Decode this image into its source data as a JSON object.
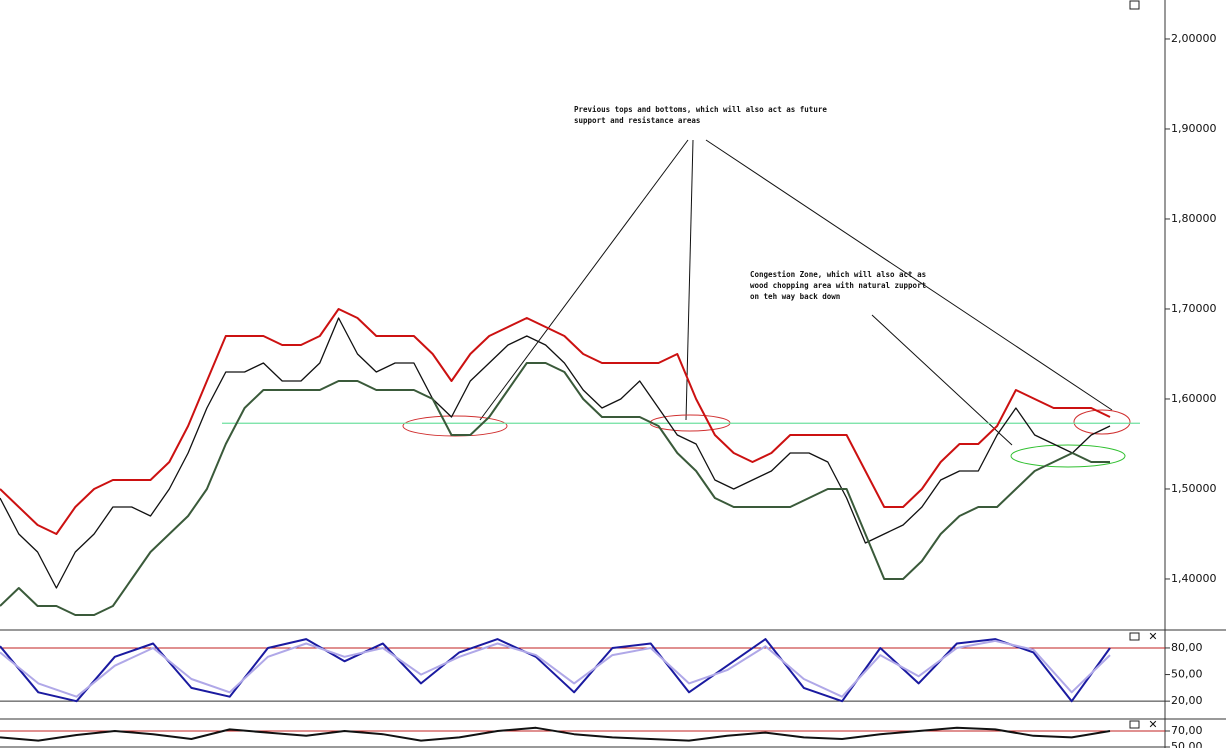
{
  "chart_data": [
    {
      "type": "line",
      "ylim": [
        1.3433,
        2.0433
      ],
      "yticks": [
        {
          "value": 1.4,
          "label": "1,40000"
        },
        {
          "value": 1.5,
          "label": "1,50000"
        },
        {
          "value": 1.6,
          "label": "1,60000"
        },
        {
          "value": 1.7,
          "label": "1,70000"
        },
        {
          "value": 1.8,
          "label": "1,80000"
        },
        {
          "value": 1.9,
          "label": "1,90000"
        },
        {
          "value": 2.0,
          "label": "2,00000"
        }
      ],
      "hline": 1.573,
      "hline_color": "#6fe0a0",
      "series": [
        {
          "color": "#111111",
          "values": [
            1.49,
            1.45,
            1.43,
            1.39,
            1.43,
            1.45,
            1.48,
            1.48,
            1.47,
            1.5,
            1.54,
            1.59,
            1.63,
            1.63,
            1.64,
            1.62,
            1.62,
            1.64,
            1.69,
            1.65,
            1.63,
            1.64,
            1.64,
            1.6,
            1.58,
            1.62,
            1.64,
            1.66,
            1.67,
            1.66,
            1.64,
            1.61,
            1.59,
            1.6,
            1.62,
            1.59,
            1.56,
            1.55,
            1.51,
            1.5,
            1.51,
            1.52,
            1.54,
            1.54,
            1.53,
            1.49,
            1.44,
            1.45,
            1.46,
            1.48,
            1.51,
            1.52,
            1.52,
            1.56,
            1.59,
            1.56,
            1.55,
            1.54,
            1.56,
            1.57
          ]
        },
        {
          "color": "#cc1111",
          "values": [
            1.5,
            1.48,
            1.46,
            1.45,
            1.48,
            1.5,
            1.51,
            1.51,
            1.51,
            1.53,
            1.57,
            1.62,
            1.67,
            1.67,
            1.67,
            1.66,
            1.66,
            1.67,
            1.7,
            1.69,
            1.67,
            1.67,
            1.67,
            1.65,
            1.62,
            1.65,
            1.67,
            1.68,
            1.69,
            1.68,
            1.67,
            1.65,
            1.64,
            1.64,
            1.64,
            1.64,
            1.65,
            1.6,
            1.56,
            1.54,
            1.53,
            1.54,
            1.56,
            1.56,
            1.56,
            1.56,
            1.52,
            1.48,
            1.48,
            1.5,
            1.53,
            1.55,
            1.55,
            1.57,
            1.61,
            1.6,
            1.59,
            1.59,
            1.59,
            1.58
          ]
        },
        {
          "color": "#3a5a3a",
          "values": [
            1.37,
            1.39,
            1.37,
            1.37,
            1.36,
            1.36,
            1.37,
            1.4,
            1.43,
            1.45,
            1.47,
            1.5,
            1.55,
            1.59,
            1.61,
            1.61,
            1.61,
            1.61,
            1.62,
            1.62,
            1.61,
            1.61,
            1.61,
            1.6,
            1.56,
            1.56,
            1.58,
            1.61,
            1.64,
            1.64,
            1.63,
            1.6,
            1.58,
            1.58,
            1.58,
            1.57,
            1.54,
            1.52,
            1.49,
            1.48,
            1.48,
            1.48,
            1.48,
            1.49,
            1.5,
            1.5,
            1.45,
            1.4,
            1.4,
            1.42,
            1.45,
            1.47,
            1.48,
            1.48,
            1.5,
            1.52,
            1.53,
            1.54,
            1.53,
            1.53
          ]
        }
      ],
      "annotations": [
        [
          "Previous tops and bottoms, which will also act as future",
          "support and resistance areas"
        ],
        [
          "Congestion Zone, which will also act as",
          "wood chopping area with natural zupport",
          "on teh way back down"
        ]
      ]
    },
    {
      "type": "line",
      "ylim": [
        1,
        98
      ],
      "yticks": [
        {
          "value": 20,
          "label": "20,00"
        },
        {
          "value": 50,
          "label": "50,00"
        },
        {
          "value": 80,
          "label": "80,00"
        }
      ],
      "series": [
        {
          "color": "#1a1aa0",
          "values": [
            82,
            30,
            20,
            70,
            85,
            35,
            25,
            80,
            90,
            65,
            85,
            40,
            75,
            90,
            70,
            30,
            80,
            85,
            30,
            60,
            90,
            35,
            20,
            80,
            40,
            85,
            90,
            75,
            20,
            80
          ]
        },
        {
          "color": "#b0a8e8",
          "values": [
            75,
            40,
            25,
            60,
            80,
            45,
            30,
            70,
            85,
            70,
            80,
            50,
            70,
            85,
            72,
            40,
            72,
            80,
            40,
            55,
            82,
            45,
            25,
            72,
            48,
            80,
            88,
            78,
            30,
            72
          ]
        }
      ]
    },
    {
      "type": "line",
      "ylim": [
        48.75,
        83.75
      ],
      "yticks": [
        {
          "value": 50,
          "label": "50,00"
        },
        {
          "value": 70,
          "label": "70,00"
        }
      ],
      "series": [
        {
          "color": "#111111",
          "values": [
            62,
            58,
            65,
            70,
            66,
            60,
            72,
            68,
            64,
            70,
            66,
            58,
            62,
            70,
            74,
            66,
            62,
            60,
            58,
            64,
            68,
            62,
            60,
            66,
            70,
            74,
            72,
            64,
            62,
            70
          ]
        }
      ]
    }
  ]
}
